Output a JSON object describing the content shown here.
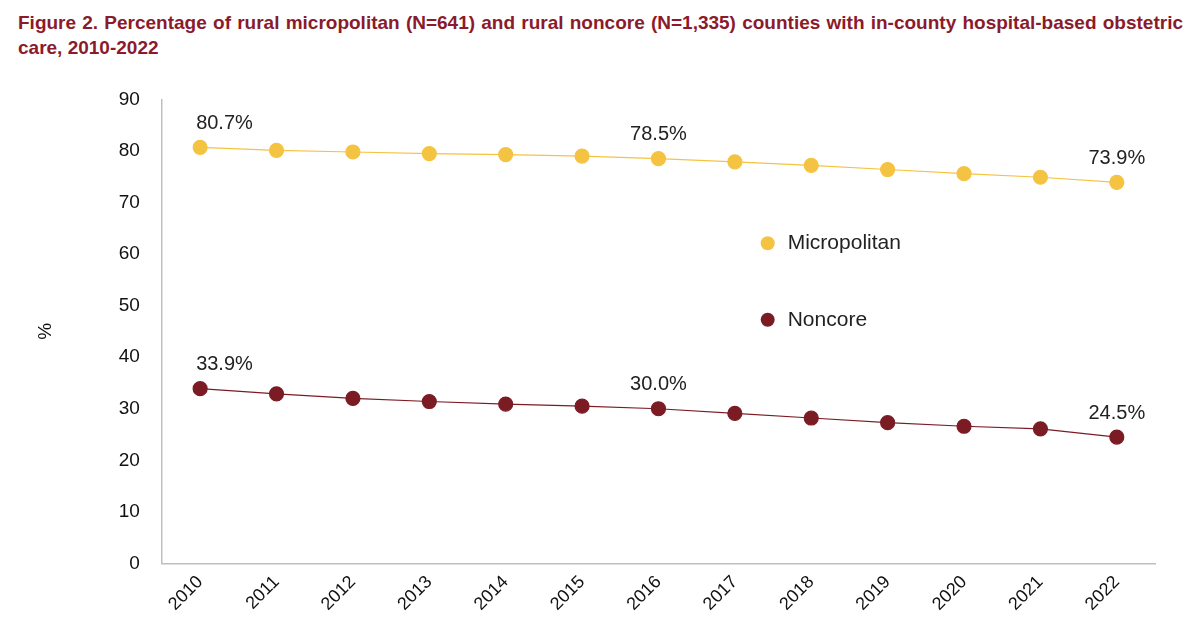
{
  "chart_data": {
    "type": "line",
    "title": "Figure 2. Percentage of rural micropolitan (N=641) and rural noncore (N=1,335) counties with in-county hospital-based obstetric care, 2010-2022",
    "y_label": "%",
    "categories": [
      "2010",
      "2011",
      "2012",
      "2013",
      "2014",
      "2015",
      "2016",
      "2017",
      "2018",
      "2019",
      "2020",
      "2021",
      "2022"
    ],
    "series": [
      {
        "name": "Micropolitan",
        "color": "#f5c342",
        "values": [
          80.7,
          80.1,
          79.8,
          79.5,
          79.3,
          79.0,
          78.5,
          77.9,
          77.2,
          76.4,
          75.6,
          74.9,
          73.9
        ],
        "value_labels": [
          "80.7%",
          null,
          null,
          null,
          null,
          null,
          "78.5%",
          null,
          null,
          null,
          null,
          null,
          "73.9%"
        ]
      },
      {
        "name": "Noncore",
        "color": "#7b1c25",
        "values": [
          33.9,
          32.9,
          32.0,
          31.4,
          30.9,
          30.5,
          30.0,
          29.1,
          28.2,
          27.3,
          26.6,
          26.1,
          24.5
        ],
        "value_labels": [
          "33.9%",
          null,
          null,
          null,
          null,
          null,
          "30.0%",
          null,
          null,
          null,
          null,
          null,
          "24.5%"
        ]
      }
    ],
    "ylim": [
      0,
      90
    ],
    "yticks": [
      0,
      10,
      20,
      30,
      40,
      50,
      60,
      70,
      80,
      90
    ],
    "grid": false,
    "legend": "right",
    "data_labels": true,
    "marker": "circle",
    "line_style": "solid"
  }
}
